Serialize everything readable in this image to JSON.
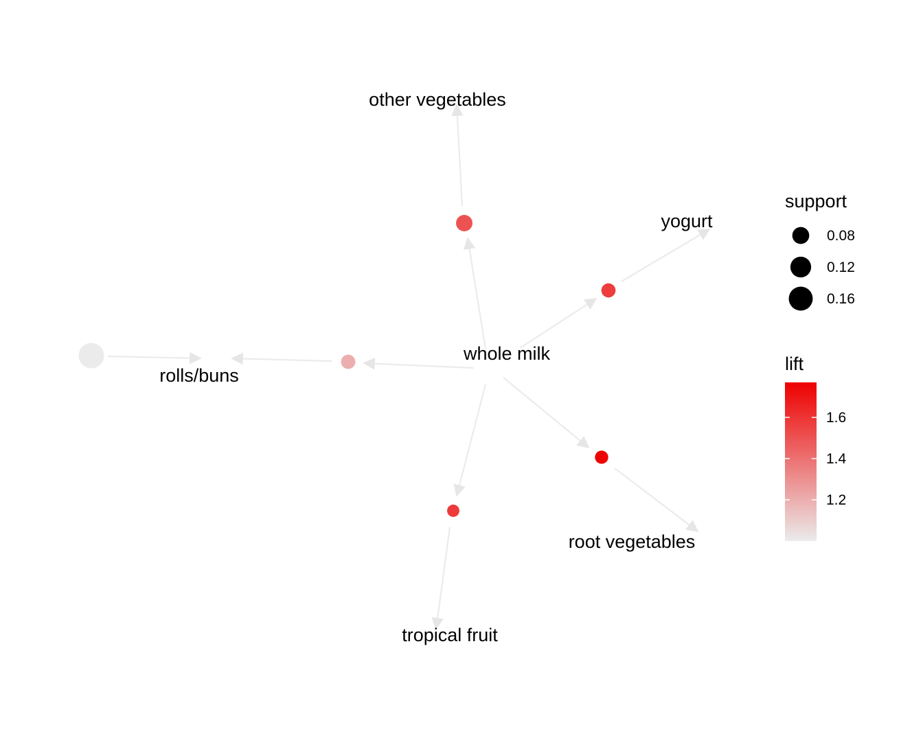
{
  "graph": {
    "items": [
      {
        "id": "whole_milk",
        "label": "whole milk"
      },
      {
        "id": "other_vegetables",
        "label": "other vegetables"
      },
      {
        "id": "yogurt",
        "label": "yogurt"
      },
      {
        "id": "rolls_buns",
        "label": "rolls/buns"
      },
      {
        "id": "root_vegetables",
        "label": "root vegetables"
      },
      {
        "id": "tropical_fruit",
        "label": "tropical fruit"
      }
    ],
    "rules": [
      {
        "id": "rule_other_vegetables",
        "lhs": "whole milk",
        "rhs": "other vegetables",
        "support": 0.075,
        "lift": 1.5
      },
      {
        "id": "rule_yogurt",
        "lhs": "whole milk",
        "rhs": "yogurt",
        "support": 0.056,
        "lift": 1.57
      },
      {
        "id": "rule_rolls_buns_a",
        "lhs": "whole milk",
        "rhs": "rolls/buns",
        "support": 0.057,
        "lift": 1.2
      },
      {
        "id": "rule_rolls_buns_b",
        "lhs": "",
        "rhs": "rolls/buns",
        "support": 0.18,
        "lift": 1.0
      },
      {
        "id": "rule_root_vegetables",
        "lhs": "whole milk",
        "rhs": "root vegetables",
        "support": 0.049,
        "lift": 1.76
      },
      {
        "id": "rule_tropical_fruit",
        "lhs": "whole milk",
        "rhs": "tropical fruit",
        "support": 0.042,
        "lift": 1.58
      }
    ]
  },
  "legend": {
    "size_title": "support",
    "size_breaks": [
      {
        "value": 0.08,
        "label": "0.08"
      },
      {
        "value": 0.12,
        "label": "0.12"
      },
      {
        "value": 0.16,
        "label": "0.16"
      }
    ],
    "color_title": "lift",
    "color_range": [
      1.0,
      1.77
    ],
    "color_breaks": [
      {
        "value": 1.2,
        "label": "1.2"
      },
      {
        "value": 1.4,
        "label": "1.4"
      },
      {
        "value": 1.6,
        "label": "1.6"
      }
    ],
    "color_low": "#ebebeb",
    "color_high": "#ee0000"
  },
  "colors": {
    "edge": "#ebebeb",
    "background": "#ffffff"
  }
}
